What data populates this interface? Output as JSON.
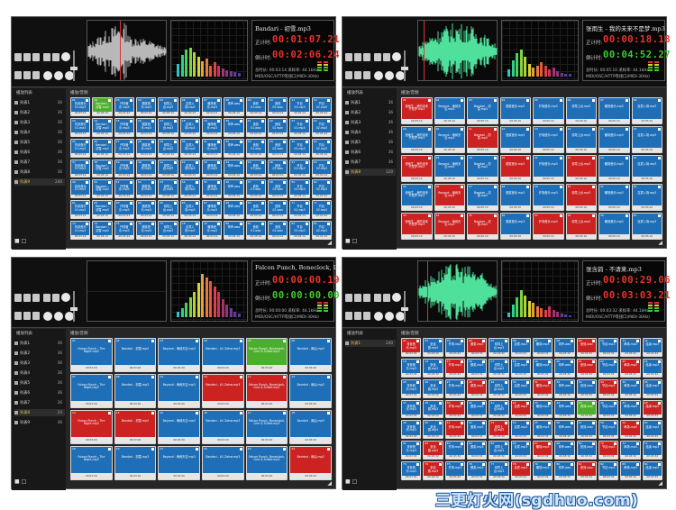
{
  "colors": {
    "pad_blue": "#1e6fb8",
    "pad_red": "#cc2222",
    "pad_green": "#4cae2d",
    "time_red": "#e8342c",
    "time_green": "#3ecb34",
    "waveform_gray": "#b8b8b8",
    "waveform_green": "#4fe09c",
    "sidebar_selected": "#e8c84a"
  },
  "icons": [
    "file-icon",
    "folder-icon",
    "save-icon",
    "edit-icon",
    "tools-icon",
    "pause-icon",
    "stop-icon",
    "loop-icon",
    "volume-slider"
  ],
  "watermark": "三更灯火网(sgdhuo.com)",
  "panels": [
    {
      "track_title": "Bandari - 初雪.mp3",
      "elapsed_label": "正计时:",
      "elapsed": "00:01:07.21",
      "remaining_label": "倒计时:",
      "remaining": "00:02:06.24",
      "info_line1": "总时长: 00:03:14 采样率: 44.1kHz",
      "info_line2": "MIDI/OSC/HTTP等接口(MIDI-30Hz)",
      "waveform": "gray",
      "sidebar_header": "播放列表",
      "sidebar_items": [
        {
          "label": "列表1",
          "count": "36"
        },
        {
          "label": "列表2",
          "count": "36"
        },
        {
          "label": "列表3",
          "count": "36"
        },
        {
          "label": "列表4",
          "count": "36"
        },
        {
          "label": "列表5",
          "count": "36"
        },
        {
          "label": "列表6",
          "count": "36"
        },
        {
          "label": "列表7",
          "count": "36"
        },
        {
          "label": "列表8",
          "count": "36"
        },
        {
          "label": "列表9",
          "count": "240"
        }
      ],
      "selected_item": 8,
      "grid_header": "播放/音频",
      "grid": {
        "cols": 12,
        "rows": 7,
        "red": [],
        "green": [
          1
        ],
        "labels": [
          "背景音乐 01.mp3",
          "Bandari - 初雪.mp3",
          "开场音乐.mp3",
          "颁奖音乐.mp3",
          "领导上台.mp3",
          "嘉宾入场.mp3",
          "暖场音乐.mp3",
          "掌声.wav",
          "音效 01.wav",
          "音效 02.wav",
          "节目 01.mp3",
          "节目 02.mp3"
        ],
        "footer": "00:03:14"
      }
    },
    {
      "track_title": "张雨生 - 我的未来不是梦.mp3",
      "elapsed_label": "正计时:",
      "elapsed": "00:00:18.18",
      "remaining_label": "倒计时:",
      "remaining": "00:04:52.27",
      "info_line1": "总时长: 00:05:10 采样率: 44.1kHz",
      "info_line2": "MIDI/OSC/HTTP等接口(MIDI-30Hz)",
      "waveform": "green",
      "sidebar_header": "播放列表",
      "sidebar_items": [
        {
          "label": "列表1",
          "count": "36"
        },
        {
          "label": "列表2",
          "count": "36"
        },
        {
          "label": "列表3",
          "count": "36"
        },
        {
          "label": "列表4",
          "count": "36"
        },
        {
          "label": "列表5",
          "count": "36"
        },
        {
          "label": "列表6",
          "count": "36"
        },
        {
          "label": "列表7",
          "count": "36"
        },
        {
          "label": "列表8",
          "count": "120"
        }
      ],
      "selected_item": 7,
      "grid_header": "播放/音频",
      "grid": {
        "cols": 8,
        "rows": 5,
        "red": [
          0,
          10,
          16,
          19,
          21,
          25,
          29,
          32,
          33,
          34,
          36,
          37
        ],
        "green": [],
        "labels": [
          "张雨生 - 我的未来不是梦.mp3",
          "Beyond - 海阔天空.mp3",
          "Bandari - 初雪.mp3",
          "颁奖音乐.mp3",
          "开场音乐.mp3",
          "领导上台.mp3",
          "暖场音乐.mp3",
          "嘉宾入场.mp3"
        ],
        "footer": "00:05:10"
      }
    },
    {
      "track_title": "Falcon Punch, Boneclock, Line & Sinker.mp3",
      "elapsed_label": "正计时:",
      "elapsed": "00:00:00.19",
      "remaining_label": "倒计时:",
      "remaining": "00:00:00.00",
      "info_line1": "总时长: 00:00:00 采样率: 44.1kHz",
      "info_line2": "MIDI/OSC/HTTP等接口(MIDI-30Hz)",
      "waveform": "none",
      "sidebar_header": "播放列表",
      "sidebar_items": [
        {
          "label": "列表1",
          "count": "36"
        },
        {
          "label": "列表2",
          "count": "36"
        },
        {
          "label": "列表3",
          "count": "36"
        },
        {
          "label": "列表4",
          "count": "36"
        },
        {
          "label": "列表5",
          "count": "36"
        },
        {
          "label": "列表6",
          "count": "36"
        },
        {
          "label": "列表7",
          "count": "36"
        },
        {
          "label": "列表8",
          "count": "24"
        },
        {
          "label": "列表9",
          "count": "36"
        }
      ],
      "selected_item": 7,
      "grid_header": "播放/音频",
      "grid": {
        "cols": 6,
        "rows": 4,
        "red": [
          9,
          10,
          12,
          13,
          23
        ],
        "green": [
          4
        ],
        "labels": [
          "Falcon Punch - The Night.mp3",
          "Bandari - 初雪.mp3",
          "Beyond - 海阔天空.mp3",
          "Bandari - A1 Zahar.mp3",
          "Falcon Punch, Boneclock, Line & Sinker.mp3",
          "Bandari - 雨后.mp3"
        ],
        "footer": "00:03:20"
      }
    },
    {
      "track_title": "张含韵 - 不请来.mp3",
      "elapsed_label": "正计时:",
      "elapsed": "00:00:29.06",
      "remaining_label": "倒计时:",
      "remaining": "00:03:03.21",
      "info_line1": "总时长: 00:03:32 采样率: 44.1kHz",
      "info_line2": "MIDI/OSC/HTTP等接口(MIDI-30Hz)",
      "waveform": "green",
      "sidebar_header": "播放列表",
      "sidebar_items": [
        {
          "label": "列表1",
          "count": "240"
        }
      ],
      "selected_item": 0,
      "grid_header": "播放/音频",
      "grid": {
        "cols": 12,
        "rows": 7,
        "red": [
          0,
          3,
          8,
          14,
          20,
          22,
          27,
          30,
          33,
          38,
          41,
          47,
          50,
          52,
          58,
          61,
          66,
          69,
          73,
          77,
          80
        ],
        "green": [
          44
        ],
        "labels": [
          "背景音乐.mp3",
          "张含韵.mp3",
          "开场.mp3",
          "颁奖.mp3",
          "领导上台.mp3",
          "嘉宾.mp3",
          "暖场.mp3",
          "掌声.wav",
          "音效.wav",
          "节目.mp3",
          "串场.mp3",
          "结束.mp3"
        ],
        "footer": "00:03:32"
      }
    }
  ]
}
